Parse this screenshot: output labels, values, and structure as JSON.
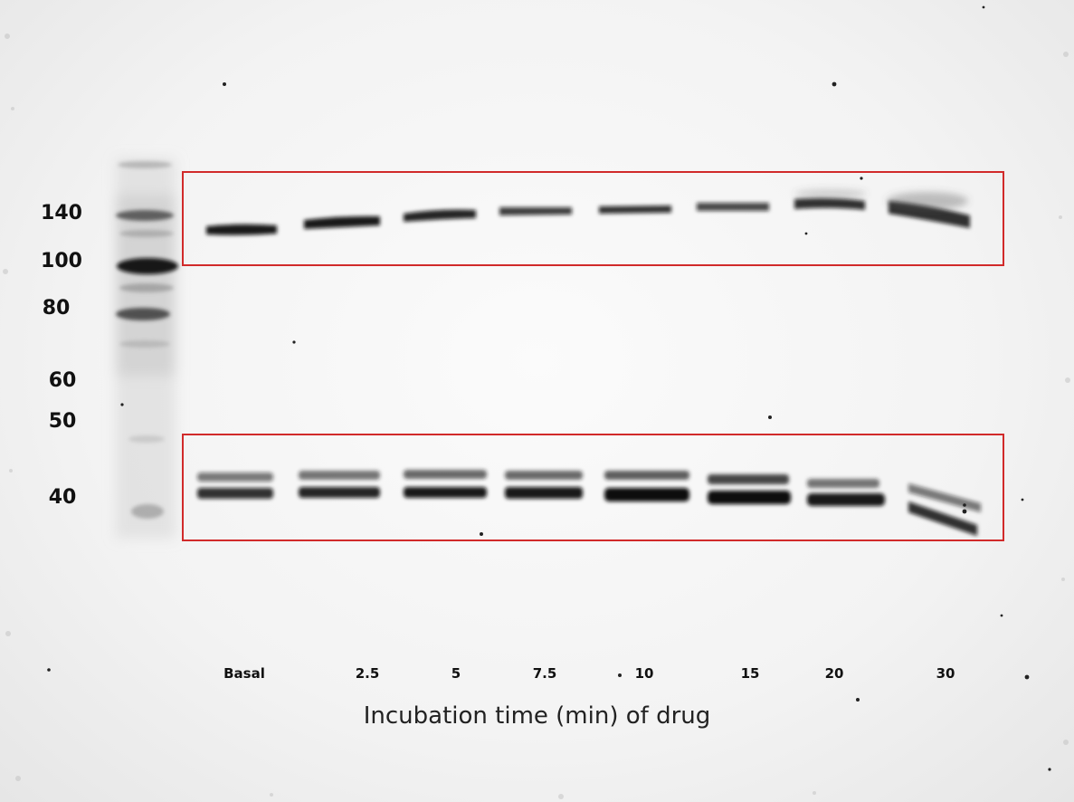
{
  "image": {
    "type": "western-blot",
    "colors": {
      "band": "#0d0d0d",
      "background": "#f4f4f4",
      "highlight_box": "#d12a2a"
    }
  },
  "marker": {
    "labels": [
      "140",
      "100",
      "80",
      "60",
      "50",
      "40"
    ]
  },
  "lanes": {
    "labels": [
      "Basal",
      "2.5",
      "5",
      "7.5",
      "10",
      "15",
      "20",
      "30"
    ]
  },
  "axis": {
    "title": "Incubation time (min) of drug"
  },
  "highlights": {
    "count": 2
  }
}
